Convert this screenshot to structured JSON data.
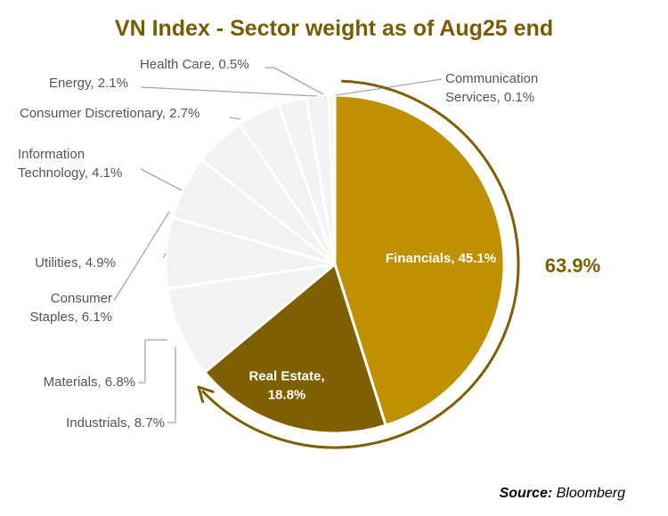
{
  "colors": {
    "title": "#7a5c00",
    "financials": "#bf9000",
    "real_estate": "#7f6000",
    "other": "#f2f2f2",
    "leader": "#a6a6a6",
    "arc": "#7f6000",
    "highlight_text": "#7f6000"
  },
  "chart_data": {
    "type": "pie",
    "title": "VN Index - Sector weight as of Aug25 end",
    "categories": [
      "Financials",
      "Real Estate",
      "Industrials",
      "Materials",
      "Consumer Staples",
      "Utilities",
      "Information Technology",
      "Consumer Discretionary",
      "Energy",
      "Health Care",
      "Communication Services"
    ],
    "values": [
      45.1,
      18.8,
      8.7,
      6.8,
      6.1,
      4.9,
      4.1,
      2.7,
      2.1,
      0.5,
      0.1
    ],
    "unit": "%",
    "labels": [
      {
        "lines": [
          "Financials, 45.1%"
        ]
      },
      {
        "lines": [
          "Real Estate,",
          "18.8%"
        ]
      },
      {
        "lines": [
          "Industrials, 8.7%"
        ]
      },
      {
        "lines": [
          "Materials, 6.8%"
        ]
      },
      {
        "lines": [
          "Consumer",
          "Staples, 6.1%"
        ]
      },
      {
        "lines": [
          "Utilities, 4.9%"
        ]
      },
      {
        "lines": [
          "Information",
          "Technology, 4.1%"
        ]
      },
      {
        "lines": [
          "Consumer Discretionary, 2.7%"
        ]
      },
      {
        "lines": [
          "Energy, 2.1%"
        ]
      },
      {
        "lines": [
          "Health Care, 0.5%"
        ]
      },
      {
        "lines": [
          "Communication",
          "Services, 0.1%"
        ]
      }
    ],
    "annotation": "63.9%",
    "source_label": "Source:",
    "source": "Bloomberg"
  }
}
